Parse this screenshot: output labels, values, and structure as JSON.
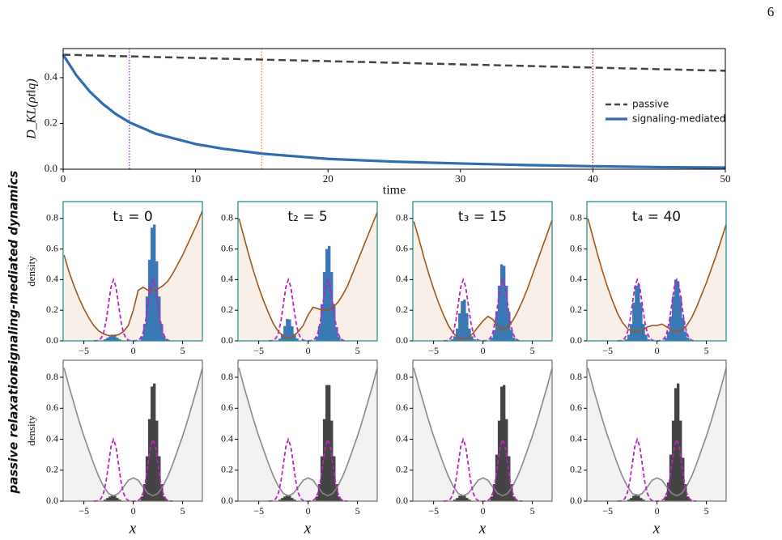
{
  "page_number": "6",
  "chart_data": [
    {
      "type": "line",
      "xlabel": "time",
      "ylabel": "D_KL(ρt‖q)",
      "x": [
        0,
        1,
        2,
        3,
        4,
        5,
        7,
        10,
        12,
        15,
        20,
        25,
        30,
        35,
        40,
        45,
        50
      ],
      "series": [
        {
          "name": "passive",
          "color": "#444444",
          "dash": true,
          "values": [
            0.5,
            0.499,
            0.497,
            0.496,
            0.494,
            0.493,
            0.49,
            0.486,
            0.483,
            0.479,
            0.472,
            0.465,
            0.458,
            0.451,
            0.444,
            0.437,
            0.43
          ]
        },
        {
          "name": "signaling-mediated",
          "color": "#2f6db0",
          "dash": false,
          "values": [
            0.5,
            0.41,
            0.34,
            0.285,
            0.24,
            0.205,
            0.155,
            0.11,
            0.09,
            0.068,
            0.045,
            0.033,
            0.025,
            0.018,
            0.013,
            0.009,
            0.007
          ]
        }
      ],
      "markers": [
        {
          "x": 5,
          "color": "#9b30d0"
        },
        {
          "x": 15,
          "color": "#f08a30"
        },
        {
          "x": 40,
          "color": "#cc2222"
        }
      ],
      "xlim": [
        0,
        50
      ],
      "ylim": [
        0,
        0.527
      ],
      "xticks": [
        0,
        10,
        20,
        30,
        40,
        50
      ],
      "yticks": [
        {
          "value": 0,
          "label": "0.0"
        },
        {
          "value": 0.2,
          "label": "0.2"
        },
        {
          "value": 0.4,
          "label": "0.4"
        }
      ],
      "legend": "right"
    },
    {
      "type": "histogram",
      "ylabel": "density",
      "xlabel": "x",
      "row_labels": [
        "signaling-mediated dynamics",
        "passive relaxation"
      ],
      "xlim": [
        -7.1,
        7
      ],
      "ylim": [
        0,
        0.91
      ],
      "xticks": [
        {
          "value": -5,
          "label": "−5"
        },
        0,
        5
      ],
      "yticks": [
        {
          "value": 0,
          "label": "0.0"
        },
        {
          "value": 0.2,
          "label": "0.2"
        },
        {
          "value": 0.4,
          "label": "0.4"
        },
        {
          "value": 0.6,
          "label": "0.6"
        },
        {
          "value": 0.8,
          "label": "0.8"
        }
      ],
      "bins": [
        -3.5,
        -3.25,
        -3,
        -2.75,
        -2.5,
        -2.25,
        -2,
        -1.75,
        -1.5,
        -1.25,
        -1,
        -0.75,
        -0.5,
        -0.25,
        0,
        0.25,
        0.5,
        0.75,
        1,
        1.25,
        1.5,
        1.75,
        2,
        2.25,
        2.5,
        2.75,
        3,
        3.25,
        3.5
      ],
      "target": {
        "color": "#c020c0",
        "x": [
          -4,
          -3.75,
          -3.5,
          -3.25,
          -3,
          -2.75,
          -2.5,
          -2.25,
          -2,
          -1.75,
          -1.5,
          -1.25,
          -1,
          -0.75,
          -0.5,
          -0.25,
          0,
          0.25,
          0.5,
          0.75,
          1,
          1.25,
          1.5,
          1.75,
          2,
          2.25,
          2.5,
          2.75,
          3,
          3.25,
          3.5,
          3.75,
          4
        ],
        "values": [
          0,
          0.001,
          0.004,
          0.018,
          0.054,
          0.129,
          0.242,
          0.352,
          0.399,
          0.352,
          0.242,
          0.129,
          0.054,
          0.018,
          0.004,
          0.001,
          0,
          0.001,
          0.004,
          0.018,
          0.054,
          0.129,
          0.242,
          0.352,
          0.399,
          0.352,
          0.242,
          0.129,
          0.054,
          0.018,
          0.004,
          0.001,
          0
        ]
      },
      "potential_x": [
        -7,
        -6.5,
        -6,
        -5.5,
        -5,
        -4.5,
        -4,
        -3.5,
        -3,
        -2.5,
        -2,
        -1.5,
        -1,
        -0.5,
        0,
        0.5,
        1,
        1.5,
        2,
        2.5,
        3,
        3.5,
        4,
        4.5,
        5,
        5.5,
        6,
        6.5,
        7
      ],
      "rows": [
        {
          "hist_color": "#3a78b5",
          "potential_color": "#a0561a",
          "fill": "#f7efe8",
          "border": "#2a8f8f",
          "panels": [
            {
              "title": "t₁ = 0",
              "title_color": "#1f3f7a",
              "counts": [
                0,
                0,
                0.01,
                0.02,
                0.03,
                0.04,
                0.035,
                0.02,
                0.01,
                0,
                0,
                0,
                0,
                0,
                0,
                0,
                0,
                0.03,
                0.11,
                0.29,
                0.53,
                0.74,
                0.76,
                0.52,
                0.29,
                0.11,
                0.03,
                0.01
              ],
              "potential": [
                0.56,
                0.45,
                0.36,
                0.28,
                0.21,
                0.15,
                0.1,
                0.065,
                0.045,
                0.035,
                0.035,
                0.04,
                0.06,
                0.1,
                0.2,
                0.33,
                0.35,
                0.33,
                0.33,
                0.34,
                0.36,
                0.39,
                0.44,
                0.5,
                0.56,
                0.63,
                0.7,
                0.77,
                0.85
              ]
            },
            {
              "title": "t₂ = 5",
              "title_color": "#8a2be2",
              "counts": [
                0,
                0.003,
                0.014,
                0.044,
                0.097,
                0.143,
                0.14,
                0.095,
                0.045,
                0.015,
                0,
                0,
                0,
                0,
                0,
                0,
                0,
                0.028,
                0.095,
                0.24,
                0.45,
                0.6,
                0.62,
                0.45,
                0.24,
                0.09,
                0.025,
                0.005
              ],
              "potential": [
                0.8,
                0.68,
                0.56,
                0.45,
                0.35,
                0.26,
                0.18,
                0.11,
                0.06,
                0.03,
                0.02,
                0.03,
                0.06,
                0.1,
                0.17,
                0.22,
                0.21,
                0.2,
                0.2,
                0.22,
                0.25,
                0.3,
                0.36,
                0.44,
                0.52,
                0.6,
                0.68,
                0.76,
                0.84
              ]
            },
            {
              "title": "t₃ = 15",
              "title_color": "#f07f10",
              "counts": [
                0,
                0.01,
                0.03,
                0.08,
                0.18,
                0.26,
                0.27,
                0.18,
                0.08,
                0.03,
                0.01,
                0,
                0,
                0,
                0,
                0,
                0,
                0.02,
                0.07,
                0.19,
                0.36,
                0.5,
                0.49,
                0.36,
                0.19,
                0.07,
                0.02,
                0.005
              ],
              "potential": [
                0.78,
                0.67,
                0.55,
                0.44,
                0.34,
                0.25,
                0.17,
                0.1,
                0.05,
                0.02,
                0.01,
                0.02,
                0.05,
                0.09,
                0.13,
                0.16,
                0.14,
                0.09,
                0.07,
                0.09,
                0.13,
                0.19,
                0.26,
                0.34,
                0.43,
                0.52,
                0.61,
                0.7,
                0.79
              ]
            },
            {
              "title": "t₄ = 40",
              "title_color": "#c8102e",
              "counts": [
                0,
                0.01,
                0.04,
                0.11,
                0.25,
                0.36,
                0.37,
                0.25,
                0.11,
                0.04,
                0.01,
                0,
                0,
                0,
                0,
                0,
                0,
                0.02,
                0.06,
                0.16,
                0.29,
                0.4,
                0.39,
                0.29,
                0.15,
                0.06,
                0.02,
                0.005
              ],
              "potential": [
                0.8,
                0.68,
                0.56,
                0.45,
                0.35,
                0.26,
                0.18,
                0.12,
                0.08,
                0.06,
                0.06,
                0.07,
                0.09,
                0.1,
                0.1,
                0.11,
                0.09,
                0.07,
                0.06,
                0.07,
                0.1,
                0.15,
                0.22,
                0.3,
                0.38,
                0.47,
                0.56,
                0.66,
                0.76
              ]
            }
          ]
        },
        {
          "hist_color": "#444444",
          "potential_color": "#888888",
          "fill": "#f2f2f2",
          "border": "#777777",
          "panels": [
            {
              "counts": [
                0,
                0,
                0.01,
                0.02,
                0.03,
                0.04,
                0.035,
                0.02,
                0.01,
                0,
                0,
                0,
                0,
                0,
                0,
                0,
                0,
                0.03,
                0.11,
                0.29,
                0.53,
                0.74,
                0.76,
                0.52,
                0.29,
                0.11,
                0.03,
                0.01
              ],
              "potential": [
                0.86,
                0.74,
                0.63,
                0.52,
                0.42,
                0.33,
                0.24,
                0.16,
                0.095,
                0.05,
                0.035,
                0.05,
                0.09,
                0.135,
                0.15,
                0.135,
                0.09,
                0.05,
                0.035,
                0.05,
                0.095,
                0.16,
                0.24,
                0.33,
                0.42,
                0.52,
                0.63,
                0.74,
                0.86
              ]
            },
            {
              "counts": [
                0,
                0,
                0.01,
                0.02,
                0.03,
                0.04,
                0.035,
                0.02,
                0.01,
                0,
                0,
                0,
                0,
                0,
                0,
                0,
                0,
                0.03,
                0.11,
                0.29,
                0.53,
                0.75,
                0.75,
                0.52,
                0.29,
                0.11,
                0.03,
                0.01
              ],
              "potential": [
                0.86,
                0.74,
                0.63,
                0.52,
                0.42,
                0.33,
                0.24,
                0.16,
                0.095,
                0.05,
                0.035,
                0.05,
                0.09,
                0.135,
                0.15,
                0.135,
                0.09,
                0.05,
                0.035,
                0.05,
                0.095,
                0.16,
                0.24,
                0.33,
                0.42,
                0.52,
                0.63,
                0.74,
                0.86
              ]
            },
            {
              "counts": [
                0,
                0,
                0.01,
                0.02,
                0.035,
                0.04,
                0.035,
                0.02,
                0.01,
                0,
                0,
                0,
                0,
                0,
                0,
                0,
                0,
                0.03,
                0.11,
                0.3,
                0.52,
                0.74,
                0.75,
                0.53,
                0.29,
                0.11,
                0.03,
                0.01
              ],
              "potential": [
                0.86,
                0.74,
                0.63,
                0.52,
                0.42,
                0.33,
                0.24,
                0.16,
                0.095,
                0.05,
                0.035,
                0.05,
                0.09,
                0.135,
                0.15,
                0.135,
                0.09,
                0.05,
                0.035,
                0.05,
                0.095,
                0.16,
                0.24,
                0.33,
                0.42,
                0.52,
                0.63,
                0.74,
                0.86
              ]
            },
            {
              "counts": [
                0,
                0,
                0.01,
                0.02,
                0.035,
                0.045,
                0.035,
                0.02,
                0.01,
                0,
                0,
                0,
                0,
                0,
                0,
                0,
                0,
                0.03,
                0.12,
                0.3,
                0.52,
                0.73,
                0.76,
                0.52,
                0.28,
                0.11,
                0.03,
                0.01
              ],
              "potential": [
                0.86,
                0.74,
                0.63,
                0.52,
                0.42,
                0.33,
                0.24,
                0.16,
                0.095,
                0.05,
                0.035,
                0.05,
                0.09,
                0.135,
                0.15,
                0.135,
                0.09,
                0.05,
                0.035,
                0.05,
                0.095,
                0.16,
                0.24,
                0.33,
                0.42,
                0.52,
                0.63,
                0.74,
                0.86
              ]
            }
          ]
        }
      ]
    }
  ]
}
